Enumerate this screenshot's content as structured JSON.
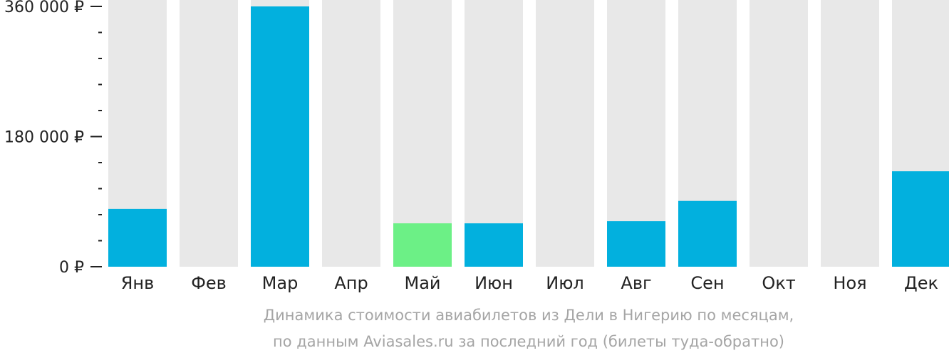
{
  "chart_data": {
    "type": "bar",
    "categories": [
      "Янв",
      "Фев",
      "Мар",
      "Апр",
      "Май",
      "Июн",
      "Июл",
      "Авг",
      "Сен",
      "Окт",
      "Ноя",
      "Дек"
    ],
    "values": [
      80000,
      null,
      360000,
      null,
      60000,
      60000,
      null,
      63000,
      91000,
      null,
      null,
      132000
    ],
    "highlight_category": "Май",
    "ylim": [
      0,
      360000
    ],
    "y_ticks": [
      {
        "value": 0,
        "label": "0 ₽"
      },
      {
        "value": 180000,
        "label": "180 000 ₽"
      },
      {
        "value": 360000,
        "label": "360 000 ₽"
      }
    ],
    "y_minor_step": 36000,
    "colors": {
      "bar": "#02b0de",
      "bar_highlight": "#6cf086",
      "bar_background": "#e8e8e8",
      "axis": "#222222"
    }
  },
  "caption": {
    "line1": "Динамика стоимости авиабилетов из Дели в Нигерию по месяцам,",
    "line2": "по данным Aviasales.ru за последний год (билеты туда-обратно)"
  }
}
